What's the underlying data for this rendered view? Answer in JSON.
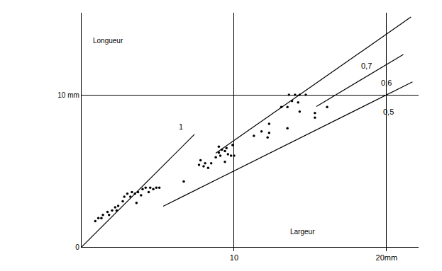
{
  "chart_data": {
    "type": "scatter",
    "x_label": "Largeur",
    "y_label": "Longueur",
    "color": "#000000",
    "marker": "dot",
    "grid": true,
    "xlim": [
      0,
      22.1
    ],
    "ylim": [
      0,
      15.4
    ],
    "xticks": [
      10,
      {
        "value": 20,
        "label": "20mm"
      }
    ],
    "yticks": [
      0,
      {
        "value": 10,
        "label": "10 mm"
      }
    ],
    "x": [
      0.9,
      1.1,
      1.3,
      1.4,
      1.7,
      1.8,
      2.0,
      2.2,
      2.3,
      2.4,
      2.7,
      2.8,
      3.0,
      3.2,
      3.3,
      3.5,
      3.6,
      3.7,
      3.9,
      4.0,
      4.2,
      4.4,
      4.5,
      4.7,
      4.9,
      5.1,
      6.7,
      7.7,
      7.8,
      8.0,
      8.1,
      8.3,
      8.5,
      8.8,
      9.0,
      9.0,
      9.1,
      9.2,
      9.4,
      9.4,
      9.5,
      9.6,
      9.8,
      9.9,
      10.0,
      11.3,
      11.8,
      12.2,
      12.3,
      12.3,
      13.1,
      13.5,
      13.5,
      13.6,
      13.8,
      14.0,
      14.2,
      14.3,
      14.3,
      14.7,
      15.3,
      15.3,
      16.1
    ],
    "values": [
      1.7,
      1.9,
      1.9,
      2.1,
      2.3,
      2.1,
      2.4,
      2.6,
      2.4,
      2.7,
      3.0,
      3.3,
      3.5,
      3.3,
      3.6,
      3.5,
      2.9,
      3.6,
      3.4,
      3.8,
      3.9,
      3.6,
      3.9,
      3.8,
      3.9,
      3.9,
      4.3,
      5.4,
      5.7,
      5.3,
      5.5,
      5.2,
      5.5,
      5.9,
      6.2,
      6.6,
      6.0,
      6.4,
      6.3,
      5.6,
      6.5,
      6.1,
      6.0,
      6.7,
      6.0,
      7.3,
      7.6,
      7.2,
      8.1,
      7.5,
      9.2,
      9.2,
      7.8,
      10.0,
      9.6,
      10.0,
      9.5,
      8.9,
      10.0,
      10.0,
      8.5,
      8.8,
      9.2
    ],
    "reference_lines": [
      {
        "label": "1",
        "x": [
          0,
          7.4
        ],
        "y": [
          0,
          7.4
        ],
        "label_x": 6.5,
        "label_y": 7.9
      },
      {
        "label": "0,7",
        "x": [
          8.8,
          21.6
        ],
        "y": [
          6.16,
          15.12
        ],
        "label_x": 18.7,
        "label_y": 11.9
      },
      {
        "label": "0,6",
        "x": [
          15.4,
          21.1
        ],
        "y": [
          9.24,
          12.66
        ],
        "label_x": 20.0,
        "label_y": 10.8
      },
      {
        "label": "0,5",
        "x": [
          5.35,
          21.7
        ],
        "y": [
          2.675,
          10.85
        ],
        "label_x": 20.1,
        "label_y": 8.9
      }
    ]
  }
}
